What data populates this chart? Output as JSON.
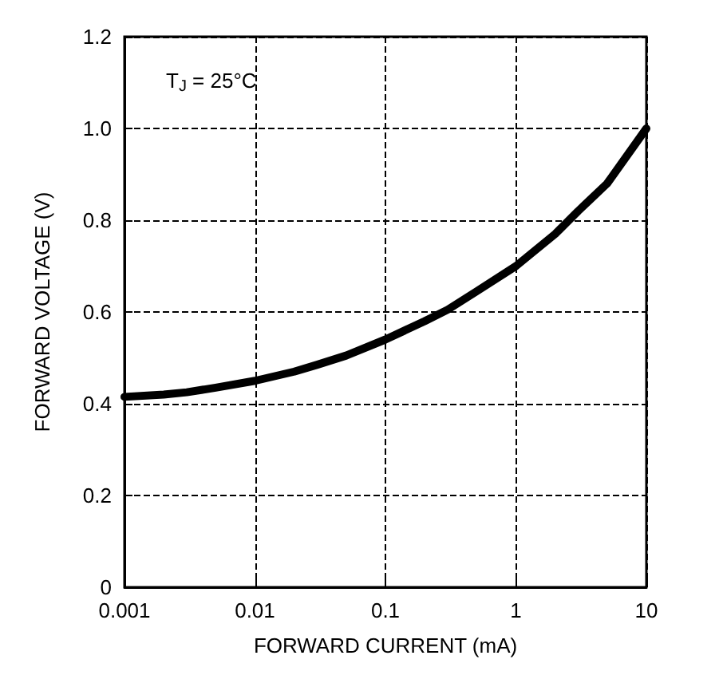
{
  "chart_data": {
    "type": "line",
    "xlabel": "FORWARD CURRENT (mA)",
    "ylabel": "FORWARD VOLTAGE (V)",
    "annotations": [
      "T$_{J}$ = 25°C"
    ],
    "log": "x",
    "grid": true,
    "marker": "none",
    "line_style": "solid",
    "xlim": [
      0.001,
      10
    ],
    "xticks": [
      0.001,
      0.01,
      0.1,
      1,
      10
    ],
    "ylim": [
      0,
      1.2
    ],
    "yticks": [
      0,
      0.2,
      0.4,
      0.6,
      0.8,
      {
        "value": 1,
        "label": "1.0"
      },
      {
        "value": 1.2,
        "label": "1.2"
      }
    ],
    "series": [
      {
        "color": "#000000",
        "x": [
          0.001,
          0.002,
          0.003,
          0.005,
          0.01,
          0.02,
          0.03,
          0.05,
          0.1,
          0.2,
          0.3,
          0.5,
          1,
          2,
          3,
          5,
          10
        ],
        "values": [
          0.415,
          0.42,
          0.425,
          0.435,
          0.45,
          0.47,
          0.485,
          0.505,
          0.54,
          0.58,
          0.605,
          0.645,
          0.7,
          0.77,
          0.82,
          0.88,
          1.0
        ]
      }
    ]
  }
}
